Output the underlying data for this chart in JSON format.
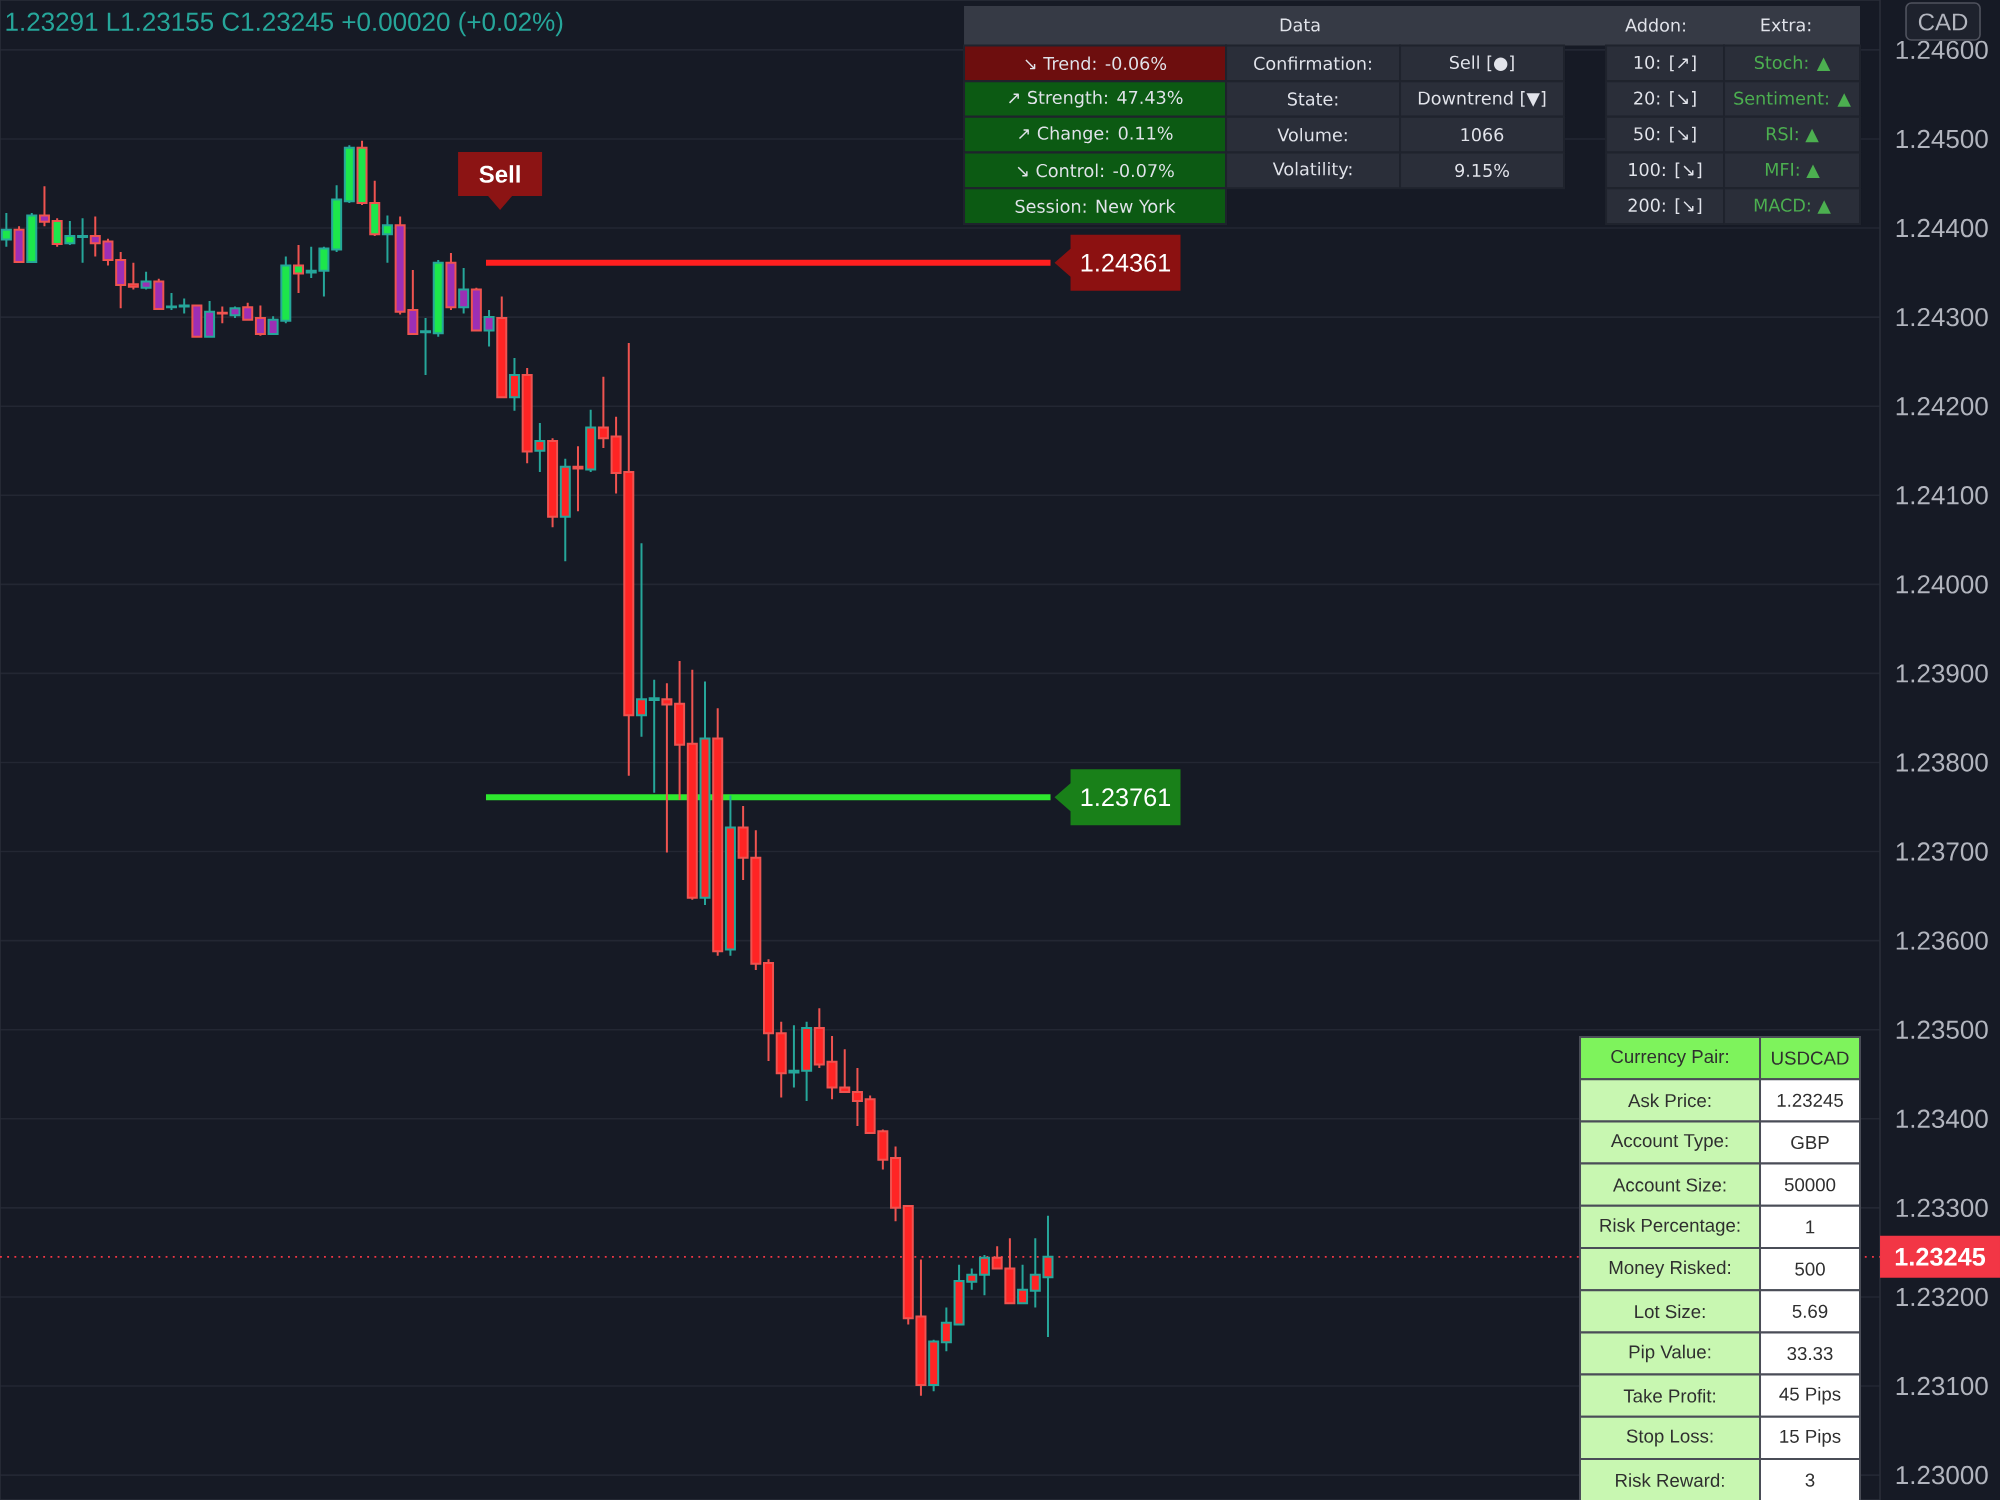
{
  "chart_data": [
    {
      "type": "candlestick",
      "annotations": [
        "1.23291 L1.23155 C1.23245 +0.00020 (+0.02%)",
        "CAD",
        "Sell"
      ],
      "categories": [
        null,
        null,
        null,
        null,
        null,
        null,
        null,
        null,
        null,
        null,
        null,
        null,
        null,
        null,
        null,
        null,
        null,
        null,
        null,
        null,
        null,
        null,
        null,
        null,
        null,
        null,
        null,
        null,
        null,
        null,
        null,
        null,
        null,
        null,
        null,
        null,
        null,
        null,
        null,
        null,
        null,
        null,
        null,
        null,
        null,
        null,
        null,
        null,
        null,
        null,
        null,
        null,
        null,
        null,
        null,
        null,
        null,
        null,
        null,
        null,
        null,
        null,
        null,
        null,
        null,
        null,
        null,
        null,
        null,
        null,
        null,
        null,
        null,
        null,
        null,
        null,
        null,
        null,
        null,
        null,
        null,
        null,
        null,
        null,
        null,
        null,
        null,
        null,
        null,
        null,
        null,
        null,
        null,
        null,
        null,
        null,
        null,
        null,
        null,
        null,
        null,
        null,
        null,
        null,
        null,
        null,
        null,
        null,
        null,
        null,
        null,
        null,
        null,
        null,
        null,
        null,
        null,
        null,
        null,
        null,
        null,
        null,
        null,
        null,
        null,
        null,
        null,
        null,
        null,
        null,
        null,
        null,
        null,
        null,
        null,
        null,
        null,
        null,
        null,
        null,
        null,
        null,
        null,
        null,
        null,
        null,
        null,
        null
      ],
      "ohlc": [
        [
          1.24387,
          1.24417,
          1.24379,
          1.24398
        ],
        [
          1.24398,
          1.24402,
          1.24361,
          1.24362
        ],
        [
          1.24362,
          1.24417,
          1.24361,
          1.24414
        ],
        [
          1.24414,
          1.24447,
          1.24402,
          1.24407
        ],
        [
          1.24408,
          1.24411,
          1.24379,
          1.24382
        ],
        [
          1.24383,
          1.24408,
          1.24381,
          1.24391
        ],
        [
          1.2439,
          1.24411,
          1.24361,
          1.24391
        ],
        [
          1.24391,
          1.24413,
          1.24368,
          1.24383
        ],
        [
          1.24385,
          1.24388,
          1.24358,
          1.24364
        ],
        [
          1.24364,
          1.24373,
          1.2431,
          1.24336
        ],
        [
          1.24337,
          1.24361,
          1.24331,
          1.24334
        ],
        [
          1.24333,
          1.24351,
          1.24331,
          1.2434
        ],
        [
          1.2434,
          1.24343,
          1.24308,
          1.24309
        ],
        [
          1.24311,
          1.24327,
          1.24308,
          1.24312
        ],
        [
          1.24312,
          1.24321,
          1.24304,
          1.24313
        ],
        [
          1.24313,
          1.24314,
          1.24277,
          1.24278
        ],
        [
          1.24278,
          1.24318,
          1.24277,
          1.24306
        ],
        [
          1.24305,
          1.24312,
          1.24293,
          1.24304
        ],
        [
          1.24302,
          1.24312,
          1.24299,
          1.2431
        ],
        [
          1.24311,
          1.24316,
          1.24296,
          1.24297
        ],
        [
          1.24299,
          1.24313,
          1.24279,
          1.24281
        ],
        [
          1.24281,
          1.24301,
          1.2428,
          1.24297
        ],
        [
          1.24296,
          1.24368,
          1.24293,
          1.24358
        ],
        [
          1.24358,
          1.24381,
          1.24327,
          1.24349
        ],
        [
          1.2435,
          1.24379,
          1.24344,
          1.24352
        ],
        [
          1.24352,
          1.24379,
          1.24323,
          1.24377
        ],
        [
          1.24376,
          1.24448,
          1.24373,
          1.24432
        ],
        [
          1.2443,
          1.24493,
          1.24428,
          1.2449
        ],
        [
          1.2449,
          1.24498,
          1.24426,
          1.24428
        ],
        [
          1.24428,
          1.24453,
          1.24391,
          1.24393
        ],
        [
          1.24393,
          1.24414,
          1.24361,
          1.24403
        ],
        [
          1.24403,
          1.24413,
          1.24303,
          1.24306
        ],
        [
          1.24308,
          1.24353,
          1.24281,
          1.24281
        ],
        [
          1.24283,
          1.24299,
          1.24235,
          1.24284
        ],
        [
          1.24282,
          1.24364,
          1.24278,
          1.24361
        ],
        [
          1.24361,
          1.24372,
          1.24308,
          1.24311
        ],
        [
          1.24311,
          1.24355,
          1.24304,
          1.24331
        ],
        [
          1.24331,
          1.24333,
          1.24284,
          1.24285
        ],
        [
          1.24285,
          1.24308,
          1.24267,
          1.243
        ],
        [
          1.24299,
          1.24323,
          1.24209,
          1.2421
        ],
        [
          1.2421,
          1.24254,
          1.24195,
          1.24235
        ],
        [
          1.24235,
          1.24243,
          1.24136,
          1.24149
        ],
        [
          1.2415,
          1.24181,
          1.24126,
          1.24161
        ],
        [
          1.24161,
          1.24164,
          1.24064,
          1.24076
        ],
        [
          1.24076,
          1.24141,
          1.24026,
          1.24132
        ],
        [
          1.24132,
          1.24155,
          1.24082,
          1.2413
        ],
        [
          1.24129,
          1.24196,
          1.24126,
          1.24176
        ],
        [
          1.24176,
          1.24233,
          1.24153,
          1.24164
        ],
        [
          1.24166,
          1.24188,
          1.24102,
          1.24125
        ],
        [
          1.24126,
          1.24271,
          1.23785,
          1.23853
        ],
        [
          1.23853,
          1.24046,
          1.23829,
          1.23871
        ],
        [
          1.2387,
          1.23893,
          1.23766,
          1.23872
        ],
        [
          1.23871,
          1.23889,
          1.23699,
          1.23865
        ],
        [
          1.23866,
          1.23914,
          1.23758,
          1.2382
        ],
        [
          1.23821,
          1.23904,
          1.23646,
          1.23648
        ],
        [
          1.23648,
          1.23891,
          1.2364,
          1.23827
        ],
        [
          1.23827,
          1.23861,
          1.23583,
          1.23588
        ],
        [
          1.2359,
          1.23763,
          1.23583,
          1.23727
        ],
        [
          1.23727,
          1.23751,
          1.23668,
          1.23693
        ],
        [
          1.23693,
          1.23724,
          1.23567,
          1.23574
        ],
        [
          1.23575,
          1.23579,
          1.23465,
          1.23496
        ],
        [
          1.23496,
          1.23509,
          1.23424,
          1.23451
        ],
        [
          1.23452,
          1.23505,
          1.23435,
          1.23454
        ],
        [
          1.23454,
          1.23509,
          1.2342,
          1.23502
        ],
        [
          1.23502,
          1.23524,
          1.23457,
          1.23461
        ],
        [
          1.23464,
          1.23493,
          1.23422,
          1.23435
        ],
        [
          1.23435,
          1.23478,
          1.23429,
          1.2343
        ],
        [
          1.2343,
          1.23457,
          1.23392,
          1.2342
        ],
        [
          1.23422,
          1.23426,
          1.23383,
          1.23384
        ],
        [
          1.23386,
          1.23388,
          1.23343,
          1.23354
        ],
        [
          1.23356,
          1.23369,
          1.23285,
          1.233
        ],
        [
          1.23302,
          1.23303,
          1.23169,
          1.23176
        ],
        [
          1.23178,
          1.23242,
          1.23089,
          1.23101
        ],
        [
          1.23101,
          1.23152,
          1.23094,
          1.2315
        ],
        [
          1.23149,
          1.23188,
          1.23139,
          1.23171
        ],
        [
          1.23169,
          1.23236,
          1.23169,
          1.23218
        ],
        [
          1.23217,
          1.23232,
          1.23208,
          1.23225
        ],
        [
          1.23225,
          1.23247,
          1.23202,
          1.23244
        ],
        [
          1.23244,
          1.23257,
          1.23232,
          1.23232
        ],
        [
          1.23232,
          1.23266,
          1.23193,
          1.23193
        ],
        [
          1.23193,
          1.23236,
          1.23193,
          1.23208
        ],
        [
          1.23207,
          1.23266,
          1.23188,
          1.23225
        ],
        [
          1.23222,
          1.23291,
          1.23155,
          1.23245
        ],
        null,
        null,
        null,
        null,
        null,
        null,
        null,
        null,
        null,
        null,
        null,
        null,
        null,
        null,
        null,
        null,
        null,
        null,
        null,
        null,
        null,
        null,
        null,
        null,
        null,
        null,
        null,
        null,
        null,
        null,
        null,
        null,
        null,
        null,
        null,
        null,
        null,
        null,
        null,
        null,
        null,
        null,
        null,
        null,
        null,
        null,
        null,
        null,
        null,
        null,
        null,
        null,
        null,
        null,
        null,
        null,
        null,
        null,
        null,
        null,
        null,
        null,
        null,
        null,
        null
      ],
      "colors": [
        "#1de64b",
        "#9c2fb5",
        "#1de64b",
        "#9c2fb5",
        "#1de64b",
        "#1de64b",
        "#26a69a",
        "#9c2fb5",
        "#9c2fb5",
        "#9c2fb5",
        "#ff2424",
        "#9c2fb5",
        "#9c2fb5",
        "#26a69a",
        "#26a69a",
        "#9c2fb5",
        "#9c2fb5",
        "#ff2424",
        "#9c2fb5",
        "#9c2fb5",
        "#9c2fb5",
        "#9c2fb5",
        "#1de64b",
        "#1de64b",
        "#26a69a",
        "#1de64b",
        "#1de64b",
        "#1de64b",
        "#1de64b",
        "#1de64b",
        "#1de64b",
        "#9c2fb5",
        "#9c2fb5",
        "#26a69a",
        "#1de64b",
        "#9c2fb5",
        "#9c2fb5",
        "#9c2fb5",
        "#9c2fb5",
        "#ff2424",
        "#ff2424",
        "#ff2424",
        "#ff2424",
        "#ff2424",
        "#ff2424",
        "#ff2424",
        "#ff2424",
        "#ff2424",
        "#ff2424",
        "#ff2424",
        "#ff2424",
        "#26a69a",
        "#ff2424",
        "#ff2424",
        "#ff2424",
        "#ff2424",
        "#ff2424",
        "#ff2424",
        "#ff2424",
        "#ff2424",
        "#ff2424",
        "#ff2424",
        "#ff2424",
        "#ff2424",
        "#ff2424",
        "#ff2424",
        "#ff2424",
        "#ff2424",
        "#ff2424",
        "#ff2424",
        "#ff2424",
        "#ff2424",
        "#ff2424",
        "#ff2424",
        "#ff2424",
        "#ff2424",
        "#ff2424",
        "#ff2424",
        "#ff2424",
        "#ff2424",
        "#ff2424",
        "#ff2424",
        "#ff2424",
        null,
        null,
        null,
        null,
        null,
        null,
        null,
        null,
        null,
        null,
        null,
        null,
        null,
        null,
        null,
        null,
        null,
        null,
        null,
        null,
        null,
        null,
        null,
        null,
        null,
        null,
        null,
        null,
        null,
        null,
        null,
        null,
        null,
        null,
        null,
        null,
        null,
        null,
        null,
        null,
        null,
        null,
        null,
        null,
        null,
        null,
        null,
        null,
        null,
        null,
        null,
        null,
        null,
        null,
        null,
        null,
        null,
        null,
        null,
        null,
        null,
        null,
        null,
        null,
        null
      ],
      "ylim": [
        1.22972,
        1.24656
      ],
      "yticks": [
        {
          "value": 1.23,
          "label": "1.23000"
        },
        {
          "value": 1.231,
          "label": "1.23100"
        },
        {
          "value": 1.232,
          "label": "1.23200"
        },
        {
          "value": 1.233,
          "label": "1.23300"
        },
        {
          "value": 1.234,
          "label": "1.23400"
        },
        {
          "value": 1.235,
          "label": "1.23500"
        },
        {
          "value": 1.236,
          "label": "1.23600"
        },
        {
          "value": 1.237,
          "label": "1.23700"
        },
        {
          "value": 1.238,
          "label": "1.23800"
        },
        {
          "value": 1.239,
          "label": "1.23900"
        },
        {
          "value": 1.24,
          "label": "1.24000"
        },
        {
          "value": 1.241,
          "label": "1.24100"
        },
        {
          "value": 1.242,
          "label": "1.24200"
        },
        {
          "value": 1.243,
          "label": "1.24300"
        },
        {
          "value": 1.244,
          "label": "1.24400"
        },
        {
          "value": 1.245,
          "label": "1.24500"
        },
        {
          "value": 1.246,
          "label": "1.24600"
        }
      ],
      "ref_lines": [
        {
          "axis": "y",
          "value": 1.24361,
          "label": "1.24361",
          "color": "#ff1f1f",
          "line_style": "solid"
        },
        {
          "axis": "y",
          "value": 1.23761,
          "label": "1.23761",
          "color": "#2ee82e",
          "line_style": "solid"
        },
        {
          "axis": "y",
          "value": 1.23245,
          "label": "1.23245",
          "color": "#f23645",
          "line_style": "dotted"
        }
      ],
      "grid": "y",
      "tick_labels": "y"
    },
    {
      "type": "other",
      "annotations": [
        "Data",
        "Addon:",
        "Extra:",
        "↘ Trend: -0.06%",
        "↗ Strength: 47.43%",
        "↗ Change: 0.11%",
        "↘ Control: -0.07%",
        "Session: New York",
        "Confirmation:",
        "State:",
        "Volume:",
        "Volatility:",
        "Sell [●]",
        "Downtrend [▼]",
        "1066",
        "9.15%",
        "10: [↗]",
        "20: [↘]",
        "50: [↘]",
        "100: [↘]",
        "200: [↘]",
        "Stoch: ▲",
        "Sentiment: ▲",
        "RSI: ▲",
        "MFI: ▲",
        "MACD: ▲"
      ]
    },
    {
      "type": "other",
      "annotations": [
        "Currency Pair:",
        "USDCAD",
        "Ask Price:",
        "1.23245",
        "Account Type:",
        "GBP",
        "Account Size:",
        "50000",
        "Risk Percentage:",
        "1",
        "Money Risked:",
        "500",
        "Lot Size:",
        "5.69",
        "Pip Value:",
        "33.33",
        "Take Profit:",
        "45 Pips",
        "Stop Loss:",
        "15 Pips",
        "Risk Reward:",
        "3"
      ]
    }
  ]
}
